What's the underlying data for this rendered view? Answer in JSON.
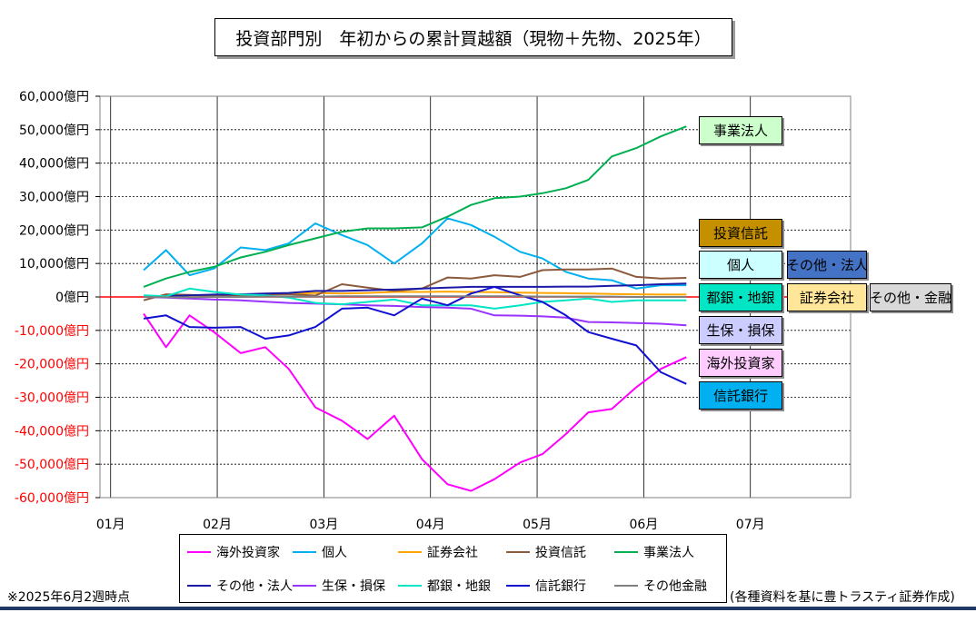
{
  "title": "投資部門別　年初からの累計買越額（現物＋先物、2025年）",
  "footnote_left": "※2025年6月2週時点",
  "footnote_right": "(各種資料を基に豊トラスティ証券作成)",
  "chart_data": {
    "type": "line",
    "ylim": [
      -60000,
      60000
    ],
    "ytick_step": 10000,
    "yticks": [
      "60,000億円",
      "50,000億円",
      "40,000億円",
      "30,000億円",
      "20,000億円",
      "10,000億円",
      "0億円",
      "-10,000億円",
      "-20,000億円",
      "-30,000億円",
      "-40,000億円",
      "-50,000億円",
      "-60,000億円"
    ],
    "xticks": [
      "01月",
      "02月",
      "03月",
      "04月",
      "05月",
      "06月",
      "07月"
    ],
    "x_month_range": [
      1,
      7
    ],
    "grid": true,
    "zero_line_color": "#ff0000",
    "x": [
      1.31,
      1.52,
      1.74,
      1.97,
      2.22,
      2.45,
      2.67,
      2.92,
      3.17,
      3.41,
      3.66,
      3.92,
      4.16,
      4.38,
      4.6,
      4.84,
      5.05,
      5.27,
      5.48,
      5.7,
      5.93,
      6.16,
      6.4
    ],
    "series": [
      {
        "name": "海外投資家",
        "color": "#ff00ff",
        "values": [
          -5000,
          -15000,
          -5500,
          -10500,
          -16800,
          -15000,
          -21500,
          -33000,
          -37000,
          -42500,
          -35500,
          -48500,
          -56000,
          -58000,
          -54500,
          -49500,
          -47000,
          -41000,
          -34500,
          -33500,
          -27000,
          -21500,
          -18000
        ]
      },
      {
        "name": "個人",
        "color": "#00b0f0",
        "values": [
          8000,
          14000,
          6500,
          8500,
          14800,
          14000,
          16000,
          22000,
          18500,
          15500,
          10000,
          16000,
          23500,
          21500,
          18000,
          13500,
          11500,
          7500,
          5500,
          5000,
          2500,
          3500,
          3500
        ]
      },
      {
        "name": "証券会社",
        "color": "#ffa500",
        "values": [
          200,
          300,
          300,
          400,
          600,
          800,
          900,
          1200,
          1000,
          1200,
          1500,
          1500,
          1600,
          1500,
          1400,
          1300,
          1200,
          1100,
          1000,
          900,
          800,
          700,
          700
        ]
      },
      {
        "name": "投資信託",
        "color": "#8c5a3c",
        "values": [
          -1000,
          800,
          600,
          200,
          500,
          700,
          800,
          400,
          3800,
          2800,
          1800,
          2500,
          5800,
          5500,
          6500,
          6000,
          8000,
          8200,
          8200,
          8500,
          6000,
          5500,
          5700
        ]
      },
      {
        "name": "事業法人",
        "color": "#00b050",
        "values": [
          3000,
          5500,
          7500,
          9000,
          11800,
          13500,
          15500,
          17500,
          19500,
          20500,
          20500,
          20800,
          24000,
          27500,
          29500,
          30000,
          31000,
          32500,
          35000,
          42000,
          44500,
          48000,
          51000
        ]
      },
      {
        "name": "その他・法人",
        "color": "#1a1aa6",
        "values": [
          0,
          200,
          500,
          700,
          800,
          1000,
          1200,
          1800,
          1800,
          2000,
          2200,
          2500,
          2800,
          3000,
          3000,
          3000,
          3000,
          3100,
          3100,
          3300,
          3500,
          3800,
          4000
        ]
      },
      {
        "name": "生保・損保",
        "color": "#9933ff",
        "values": [
          0,
          -200,
          -500,
          -800,
          -1000,
          -1400,
          -1800,
          -2000,
          -2200,
          -2500,
          -2700,
          -3000,
          -3200,
          -3500,
          -5500,
          -5600,
          -5800,
          -6200,
          -7500,
          -7600,
          -7800,
          -8000,
          -8500
        ]
      },
      {
        "name": "都銀・地銀",
        "color": "#00e5c4",
        "values": [
          500,
          200,
          2500,
          1500,
          700,
          500,
          -200,
          -1800,
          -2200,
          -1500,
          -800,
          -2500,
          -2500,
          -2500,
          -3500,
          -2500,
          -1500,
          -1000,
          -500,
          -1500,
          -1000,
          -1000,
          -1000
        ]
      },
      {
        "name": "信託銀行",
        "color": "#1010d0",
        "values": [
          -6500,
          -5500,
          -9000,
          -9200,
          -9000,
          -12500,
          -11500,
          -9000,
          -3500,
          -3200,
          -5500,
          -500,
          -2500,
          1000,
          3000,
          500,
          -1500,
          -5500,
          -10500,
          -12500,
          -14500,
          -22500,
          -26000
        ]
      },
      {
        "name": "その他金融",
        "color": "#7f7f7f",
        "values": [
          0,
          -100,
          -100,
          0,
          0,
          100,
          100,
          100,
          200,
          200,
          200,
          200,
          200,
          200,
          200,
          200,
          100,
          100,
          100,
          100,
          0,
          0,
          0
        ]
      }
    ]
  },
  "line_labels": [
    {
      "text": "事業法人",
      "bg": "#ccffcc"
    },
    {
      "text": "投資信託",
      "bg": "#c59000"
    },
    {
      "text": "個人",
      "bg": "#ccffff"
    },
    {
      "text": "その他・法人",
      "bg": "#4472c4"
    },
    {
      "text": "都銀・地銀",
      "bg": "#00e5c4"
    },
    {
      "text": "証券会社",
      "bg": "#ffe699"
    },
    {
      "text": "その他・金融",
      "bg": "#d9d9d9"
    },
    {
      "text": "生保・損保",
      "bg": "#ccccff"
    },
    {
      "text": "海外投資家",
      "bg": "#ffccff"
    },
    {
      "text": "信託銀行",
      "bg": "#00b0f0"
    }
  ],
  "legend": [
    {
      "name": "海外投資家",
      "color": "#ff00ff"
    },
    {
      "name": "個人",
      "color": "#00b0f0"
    },
    {
      "name": "証券会社",
      "color": "#ffa500"
    },
    {
      "name": "投資信託",
      "color": "#8c5a3c"
    },
    {
      "name": "事業法人",
      "color": "#00b050"
    },
    {
      "name": "その他・法人",
      "color": "#1a1aa6"
    },
    {
      "name": "生保・損保",
      "color": "#9933ff"
    },
    {
      "name": "都銀・地銀",
      "color": "#00e5c4"
    },
    {
      "name": "信託銀行",
      "color": "#1010d0"
    },
    {
      "name": "その他金融",
      "color": "#7f7f7f"
    }
  ]
}
